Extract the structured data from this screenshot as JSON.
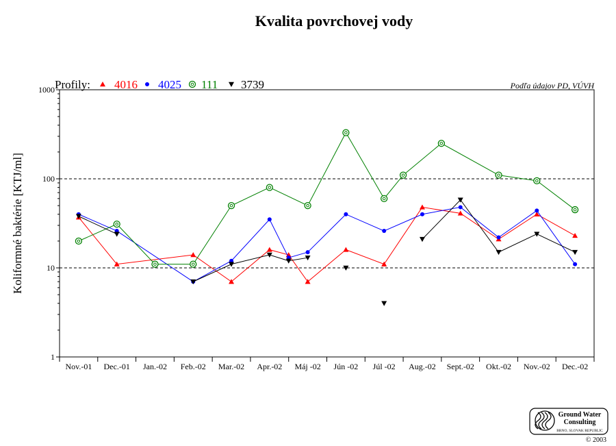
{
  "chart_data": {
    "type": "line",
    "title": "Kvalita povrchovej vody",
    "ylabel": "Koliformné  baktérie [KTJ/ml]",
    "xlabel": "",
    "yscale": "log",
    "ylim": [
      1,
      1000
    ],
    "yticks": [
      1,
      10,
      100,
      1000
    ],
    "gridlines_y": [
      10,
      100
    ],
    "grid": "dashed horizontal at 10 and 100",
    "legend_position": "top-left",
    "source_note": "Podľa údajov PD, VÚVH",
    "legend_title": "Profily:",
    "categories": [
      "Nov.-01",
      "Dec.-01",
      "Jan.-02",
      "Feb.-02",
      "Mar.-02",
      "Apr.-02",
      "Máj -02",
      "Jún -02",
      "Júl -02",
      "Aug.-02",
      "Sept.-02",
      "Okt.-02",
      "Nov.-02",
      "Dec.-02"
    ],
    "series": [
      {
        "name": "4016",
        "color": "#ff0000",
        "marker": "triangle-up",
        "points": [
          [
            0,
            37
          ],
          [
            1,
            11
          ],
          [
            3,
            14
          ],
          [
            4,
            7
          ],
          [
            5,
            16
          ],
          [
            5.5,
            14
          ],
          [
            6,
            7
          ],
          [
            7,
            16
          ],
          [
            8,
            11
          ],
          [
            9,
            48
          ],
          [
            10,
            41
          ],
          [
            11,
            21
          ],
          [
            12,
            40
          ],
          [
            13,
            23
          ]
        ]
      },
      {
        "name": "4025",
        "color": "#0000ff",
        "marker": "circle",
        "points": [
          [
            0,
            40
          ],
          [
            1,
            26
          ],
          [
            3,
            7
          ],
          [
            4,
            12
          ],
          [
            5,
            35
          ],
          [
            5.5,
            13
          ],
          [
            6,
            15
          ],
          [
            7,
            40
          ],
          [
            8,
            26
          ],
          [
            9,
            40
          ],
          [
            10,
            48
          ],
          [
            11,
            22
          ],
          [
            12,
            44
          ],
          [
            13,
            11
          ]
        ]
      },
      {
        "name": "111",
        "color": "#008000",
        "marker": "circle-open",
        "points": [
          [
            0,
            20
          ],
          [
            1,
            31
          ],
          [
            2,
            11
          ],
          [
            3,
            11
          ],
          [
            4,
            50
          ],
          [
            5,
            80
          ],
          [
            6,
            50
          ],
          [
            7,
            330
          ],
          [
            8,
            60
          ],
          [
            8.5,
            110
          ],
          [
            9.5,
            250
          ],
          [
            11,
            110
          ],
          [
            12,
            95
          ],
          [
            13,
            45
          ]
        ]
      },
      {
        "name": "3739",
        "color": "#000000",
        "marker": "triangle-down",
        "segments": [
          [
            [
              0,
              38
            ],
            [
              1,
              24
            ]
          ],
          [
            [
              3,
              7
            ],
            [
              4,
              11
            ],
            [
              5,
              14
            ],
            [
              5.5,
              12
            ],
            [
              6,
              13
            ]
          ],
          [
            [
              9,
              21
            ],
            [
              10,
              58
            ],
            [
              11,
              15
            ],
            [
              12,
              24
            ],
            [
              13,
              15
            ]
          ]
        ],
        "points": [
          [
            0,
            38
          ],
          [
            1,
            24
          ],
          [
            3,
            7
          ],
          [
            4,
            11
          ],
          [
            5,
            14
          ],
          [
            5.5,
            12
          ],
          [
            6,
            13
          ],
          [
            7,
            10
          ],
          [
            8,
            4
          ],
          [
            9,
            21
          ],
          [
            10,
            58
          ],
          [
            11,
            15
          ],
          [
            12,
            24
          ],
          [
            13,
            15
          ]
        ]
      }
    ]
  },
  "logo": {
    "name": "Ground Water Consulting",
    "line1": "Ground Water",
    "line2": "Consulting",
    "line3": "BRNO, SLOVAK REPUBLIC",
    "copyright": "© 2003"
  }
}
